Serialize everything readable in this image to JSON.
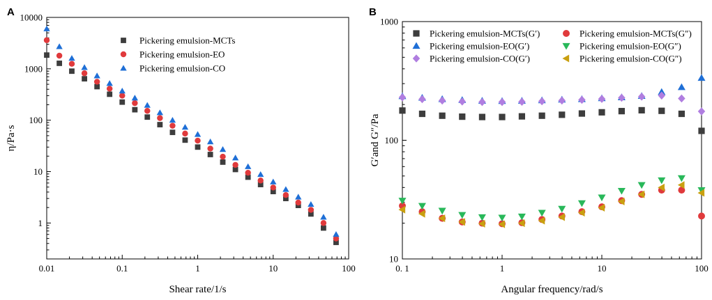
{
  "colors": {
    "MCTs": "#3d3d3d",
    "EO": "#e03a3c",
    "CO": "#1f6fd6",
    "G_prime_MCTs": "#3d3d3d",
    "G_prime_EO": "#1f6fd6",
    "G_prime_CO": "#b07ee0",
    "G_dprime_MCTs": "#e03a3c",
    "G_dprime_EO": "#29b85a",
    "G_dprime_CO": "#c9a010"
  },
  "chart_data": [
    {
      "id": "A",
      "panel_label": "A",
      "type": "scatter",
      "xscale": "log",
      "yscale": "log",
      "xlim": [
        0.01,
        100
      ],
      "ylim": [
        0.2,
        10000
      ],
      "xlabel": "Shear rate/1/s",
      "ylabel": "η/Pa·s",
      "xticks": [
        {
          "value": 0.01,
          "label": "0.01"
        },
        {
          "value": 0.1,
          "label": "0.1"
        },
        {
          "value": 1,
          "label": "1"
        },
        {
          "value": 10,
          "label": "10"
        },
        {
          "value": 100,
          "label": "100"
        }
      ],
      "yticks": [
        {
          "value": 1,
          "label": "1"
        },
        {
          "value": 10,
          "label": "10"
        },
        {
          "value": 100,
          "label": "100"
        },
        {
          "value": 1000,
          "label": "1000"
        },
        {
          "value": 10000,
          "label": "10000"
        }
      ],
      "legend_position": "top-right",
      "x": [
        0.01,
        0.0147,
        0.0215,
        0.0316,
        0.0464,
        0.0681,
        0.1,
        0.147,
        0.215,
        0.316,
        0.464,
        0.681,
        1.0,
        1.47,
        2.15,
        3.16,
        4.64,
        6.81,
        10.0,
        14.7,
        21.5,
        31.6,
        46.4,
        68.1
      ],
      "series": [
        {
          "name": "Pickering emulsion-MCTs",
          "color_key": "MCTs",
          "marker": "square",
          "values": [
            1850,
            1280,
            900,
            640,
            450,
            320,
            225,
            160,
            115,
            82,
            58,
            41,
            30,
            21.5,
            15.3,
            11,
            7.8,
            5.6,
            4.1,
            3.0,
            2.2,
            1.5,
            0.8,
            0.42
          ]
        },
        {
          "name": "Pickering emulsion-EO",
          "color_key": "EO",
          "marker": "circle",
          "values": [
            3600,
            1800,
            1250,
            820,
            560,
            410,
            300,
            215,
            152,
            110,
            78,
            55,
            40,
            28,
            19.5,
            13.5,
            9.5,
            6.7,
            4.9,
            3.5,
            2.5,
            1.8,
            1.0,
            0.5
          ]
        },
        {
          "name": "Pickering emulsion-CO",
          "color_key": "CO",
          "marker": "triangle-up",
          "values": [
            6000,
            2700,
            1600,
            1060,
            730,
            520,
            370,
            270,
            195,
            140,
            100,
            73,
            53,
            38,
            27,
            18.5,
            12.5,
            8.8,
            6.3,
            4.5,
            3.2,
            2.3,
            1.3,
            0.6
          ]
        }
      ]
    },
    {
      "id": "B",
      "panel_label": "B",
      "type": "scatter",
      "xscale": "log",
      "yscale": "log",
      "xlim": [
        0.1,
        100
      ],
      "ylim": [
        10,
        1000
      ],
      "xlabel": "Angular frequency/rad/s",
      "ylabel": "G′and G″/Pa",
      "xticks": [
        {
          "value": 0.1,
          "label": "0. 1"
        },
        {
          "value": 1,
          "label": "1"
        },
        {
          "value": 10,
          "label": "10"
        },
        {
          "value": 100,
          "label": "100"
        }
      ],
      "yticks": [
        {
          "value": 10,
          "label": "10"
        },
        {
          "value": 100,
          "label": "100"
        },
        {
          "value": 1000,
          "label": "1000"
        }
      ],
      "legend_position": "top",
      "x": [
        0.1,
        0.158,
        0.251,
        0.398,
        0.631,
        1.0,
        1.58,
        2.51,
        3.98,
        6.31,
        10.0,
        15.8,
        25.1,
        39.8,
        63.1,
        100
      ],
      "series": [
        {
          "name": "Pickering emulsion-MCTs(G′)",
          "color_key": "G_prime_MCTs",
          "marker": "square",
          "values": [
            178,
            167,
            161,
            158,
            157,
            157,
            159,
            161,
            164,
            168,
            172,
            176,
            179,
            177,
            167,
            120
          ]
        },
        {
          "name": "Pickering emulsion-MCTs(G″)",
          "color_key": "G_dprime_MCTs",
          "marker": "circle",
          "values": [
            28,
            25,
            22,
            20.5,
            20,
            19.8,
            20.2,
            21.5,
            23,
            25,
            27.5,
            31,
            35,
            38,
            38,
            23
          ]
        },
        {
          "name": "Pickering emulsion-EO(G′)",
          "color_key": "G_prime_EO",
          "marker": "triangle-up",
          "values": [
            235,
            228,
            222,
            218,
            215,
            214,
            215,
            217,
            220,
            222,
            226,
            230,
            236,
            255,
            280,
            335
          ]
        },
        {
          "name": "Pickering emulsion-EO(G″)",
          "color_key": "G_dprime_EO",
          "marker": "triangle-down",
          "values": [
            31,
            28,
            25.5,
            23.5,
            22.5,
            22.3,
            22.8,
            24.5,
            26.5,
            29.5,
            33,
            37.5,
            42,
            46,
            48,
            38
          ]
        },
        {
          "name": "Pickering emulsion-CO(G′)",
          "color_key": "G_prime_CO",
          "marker": "diamond",
          "values": [
            230,
            222,
            216,
            212,
            210,
            210,
            211,
            213,
            216,
            219,
            223,
            228,
            233,
            238,
            225,
            175
          ]
        },
        {
          "name": "Pickering emulsion-CO(G″)",
          "color_key": "G_dprime_CO",
          "marker": "triangle-left",
          "values": [
            26,
            24,
            22,
            20.5,
            19.8,
            19.6,
            20,
            21,
            22.5,
            24.5,
            27,
            30.5,
            35,
            40,
            42,
            36
          ]
        }
      ]
    }
  ]
}
